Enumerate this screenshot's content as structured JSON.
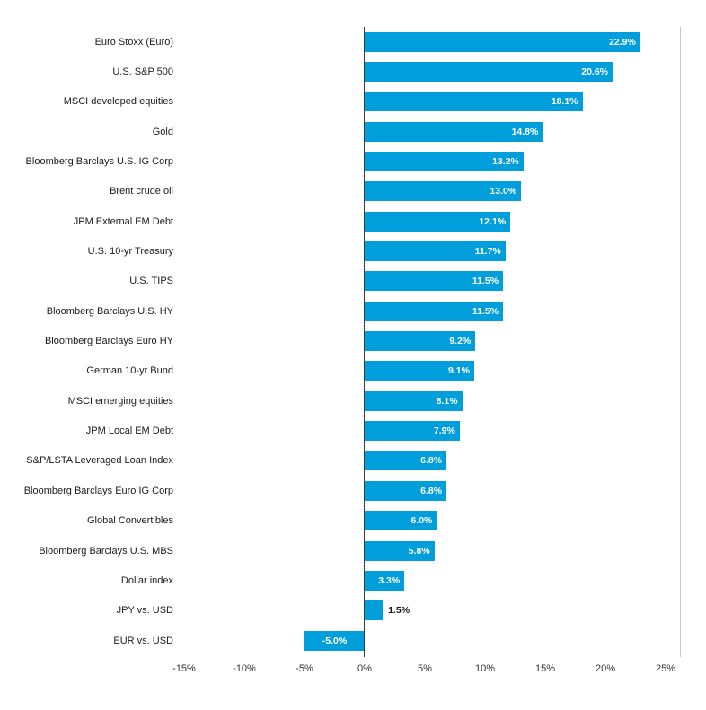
{
  "chart_data": {
    "type": "bar",
    "orientation": "horizontal",
    "title": "",
    "categories": [
      "Euro Stoxx (Euro)",
      "U.S. S&P 500",
      "MSCI developed equities",
      "Gold",
      "Bloomberg Barclays U.S. IG Corp",
      "Brent crude oil",
      "JPM External EM Debt",
      "U.S. 10-yr Treasury",
      "U.S. TIPS",
      "Bloomberg Barclays U.S. HY",
      "Bloomberg Barclays Euro HY",
      "German 10-yr Bund",
      "MSCI emerging equities",
      "JPM Local EM Debt",
      "S&P/LSTA Leveraged Loan Index",
      "Bloomberg Barclays Euro IG Corp",
      "Global Convertibles",
      "Bloomberg Barclays U.S. MBS",
      "Dollar index",
      "JPY vs. USD",
      "EUR vs. USD"
    ],
    "values": [
      22.9,
      20.6,
      18.1,
      14.8,
      13.2,
      13.0,
      12.1,
      11.7,
      11.5,
      11.5,
      9.2,
      9.1,
      8.1,
      7.9,
      6.8,
      6.8,
      6.0,
      5.8,
      3.3,
      1.5,
      -5.0
    ],
    "value_labels": [
      "22.9%",
      "20.6%",
      "18.1%",
      "14.8%",
      "13.2%",
      "13.0%",
      "12.1%",
      "11.7%",
      "11.5%",
      "11.5%",
      "9.2%",
      "9.1%",
      "8.1%",
      "7.9%",
      "6.8%",
      "6.8%",
      "6.0%",
      "5.8%",
      "3.3%",
      "1.5%",
      "-5.0%"
    ],
    "xlim": [
      -15,
      25
    ],
    "x_tick_values": [
      -15,
      -10,
      -5,
      0,
      5,
      10,
      15,
      20,
      25
    ],
    "x_ticks": [
      "-15%",
      "-10%",
      "-5%",
      "0%",
      "5%",
      "10%",
      "15%",
      "20%",
      "25%"
    ],
    "bar_color": "#009EDB",
    "background_color": "#ffffff",
    "value_label_color_inside": "#ffffff",
    "value_label_color_outside": "#1a1a1a",
    "grid": "zero-line and right border only",
    "legend": "none"
  }
}
